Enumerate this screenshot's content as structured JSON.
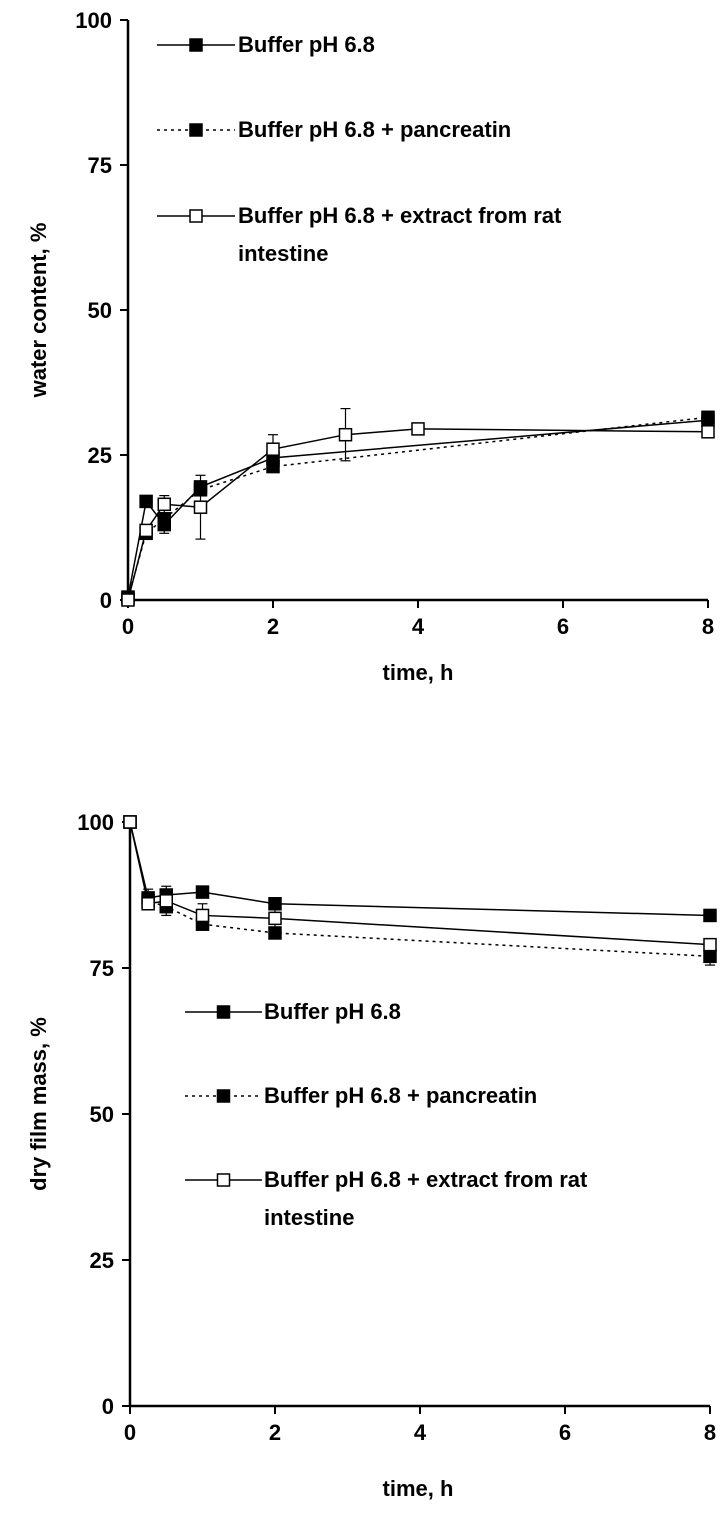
{
  "chart_data": [
    {
      "type": "line",
      "title": "",
      "xlabel": "time, h",
      "ylabel": "water content, %",
      "xlim": [
        0,
        8
      ],
      "ylim": [
        0,
        100
      ],
      "xticks": [
        "0",
        "2",
        "4",
        "6",
        "8"
      ],
      "yticks": [
        "0",
        "25",
        "50",
        "75",
        "100"
      ],
      "grid": false,
      "legend_position": "top-left",
      "series": [
        {
          "name": "Buffer pH 6.8",
          "line": "solid",
          "marker": "filled-square",
          "x": [
            0,
            0.25,
            0.5,
            1,
            2,
            8
          ],
          "y": [
            0.5,
            17,
            13,
            19.5,
            24.5,
            31
          ],
          "err": [
            0,
            1,
            1.5,
            1,
            1,
            1.5
          ]
        },
        {
          "name": "Buffer pH 6.8 + pancreatin",
          "line": "dotted",
          "marker": "filled-square",
          "x": [
            0,
            0.25,
            0.5,
            1,
            2,
            8
          ],
          "y": [
            0.3,
            11.5,
            14,
            19,
            23,
            31.5
          ],
          "err": [
            0,
            0.5,
            1,
            1,
            1,
            1
          ]
        },
        {
          "name": "Buffer pH 6.8 + extract from rat intestine",
          "line": "solid",
          "marker": "open-square",
          "x": [
            0,
            0.25,
            0.5,
            1,
            2,
            3,
            4,
            8
          ],
          "y": [
            0,
            12,
            16.5,
            16,
            26,
            28.5,
            29.5,
            29
          ],
          "err": [
            0,
            1,
            1.5,
            5.5,
            2.5,
            4.5,
            1,
            1
          ]
        }
      ]
    },
    {
      "type": "line",
      "title": "",
      "xlabel": "time, h",
      "ylabel": "dry film mass, %",
      "xlim": [
        0,
        8
      ],
      "ylim": [
        0,
        100
      ],
      "xticks": [
        "0",
        "2",
        "4",
        "6",
        "8"
      ],
      "yticks": [
        "0",
        "25",
        "50",
        "75",
        "100"
      ],
      "grid": false,
      "legend_position": "center-left",
      "series": [
        {
          "name": "Buffer pH 6.8",
          "line": "solid",
          "marker": "filled-square",
          "x": [
            0,
            0.25,
            0.5,
            1,
            2,
            8
          ],
          "y": [
            100,
            87,
            87.5,
            88,
            86,
            84
          ],
          "err": [
            0,
            1.5,
            1.5,
            1,
            1,
            0.5
          ]
        },
        {
          "name": "Buffer pH 6.8 + pancreatin",
          "line": "dotted",
          "marker": "filled-square",
          "x": [
            0,
            0.25,
            0.5,
            1,
            2,
            8
          ],
          "y": [
            100,
            86.5,
            85.5,
            82.5,
            81,
            77
          ],
          "err": [
            0,
            1.5,
            1.5,
            1,
            1,
            1.5
          ]
        },
        {
          "name": "Buffer pH 6.8 + extract from rat intestine",
          "line": "solid",
          "marker": "open-square",
          "x": [
            0,
            0.25,
            0.5,
            1,
            2,
            8
          ],
          "y": [
            100,
            86,
            86.5,
            84,
            83.5,
            79
          ],
          "err": [
            0,
            1,
            1.5,
            2,
            1.5,
            1
          ]
        }
      ]
    }
  ]
}
